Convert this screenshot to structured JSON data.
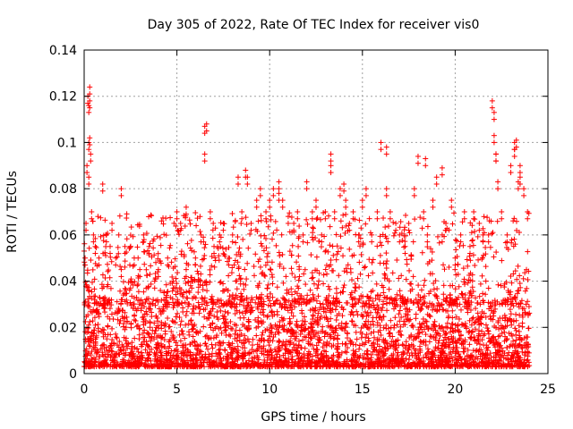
{
  "chart_data": {
    "type": "scatter",
    "title": "Day 305 of 2022, Rate Of TEC Index for receiver vis0",
    "xlabel": "GPS time / hours",
    "ylabel": "ROTI / TECUs",
    "xlim": [
      0,
      25
    ],
    "ylim": [
      0,
      0.14
    ],
    "xticks": [
      0,
      5,
      10,
      15,
      20,
      25
    ],
    "yticks": [
      0,
      0.02,
      0.04,
      0.06,
      0.08,
      0.1,
      0.12,
      0.14
    ],
    "xtick_labels": [
      "0",
      "5",
      "10",
      "15",
      "20",
      "25"
    ],
    "ytick_labels": [
      "0",
      "0.02",
      "0.04",
      "0.06",
      "0.08",
      "0.1",
      "0.12",
      "0.14"
    ],
    "grid": true,
    "marker": "plus",
    "color": "#ff0000",
    "series": [
      {
        "x": [
          0.05,
          0.1,
          0.15,
          0.2,
          0.25,
          0.25,
          0.3,
          0.3,
          0.35,
          0.4,
          0.5,
          0.6,
          0.8,
          1.0,
          1.2,
          1.4,
          1.5,
          1.7,
          2.0,
          2.2,
          2.5,
          2.7,
          3.0,
          3.2,
          3.5,
          3.8,
          4.0,
          4.3,
          4.5,
          4.8,
          5.0,
          5.2,
          5.5,
          5.8,
          6.0,
          6.3,
          6.5,
          6.6,
          6.8,
          7.0,
          7.3,
          7.5,
          7.8,
          8.0,
          8.3,
          8.5,
          8.7,
          9.0,
          9.3,
          9.5,
          9.8,
          10.0,
          10.2,
          10.5,
          10.7,
          11.0,
          11.3,
          11.5,
          11.8,
          12.0,
          12.3,
          12.5,
          12.8,
          13.0,
          13.3,
          13.5,
          13.8,
          14.0,
          14.3,
          14.5,
          14.8,
          15.0,
          15.2,
          15.5,
          15.8,
          16.0,
          16.3,
          16.5,
          16.8,
          17.0,
          17.3,
          17.5,
          17.8,
          18.0,
          18.3,
          18.5,
          18.8,
          19.0,
          19.3,
          19.5,
          19.8,
          20.0,
          20.3,
          20.5,
          20.8,
          21.0,
          21.3,
          21.5,
          21.8,
          22.0,
          22.1,
          22.2,
          22.3,
          22.5,
          22.8,
          23.0,
          23.2,
          23.3,
          23.5,
          23.7,
          23.9,
          0.3,
          0.25,
          2.0,
          5.5,
          6.5,
          8.8,
          10.5,
          13.3,
          14.1,
          16.3,
          18.4,
          19.3,
          22.1,
          22.2,
          23.2,
          23.4,
          23.5
        ],
        "y": [
          0.05,
          0.065,
          0.09,
          0.12,
          0.1,
          0.085,
          0.124,
          0.118,
          0.095,
          0.07,
          0.06,
          0.055,
          0.05,
          0.082,
          0.06,
          0.055,
          0.065,
          0.05,
          0.045,
          0.055,
          0.04,
          0.05,
          0.045,
          0.06,
          0.055,
          0.04,
          0.045,
          0.035,
          0.05,
          0.04,
          0.07,
          0.065,
          0.045,
          0.04,
          0.05,
          0.06,
          0.095,
          0.108,
          0.07,
          0.055,
          0.06,
          0.065,
          0.05,
          0.06,
          0.085,
          0.07,
          0.088,
          0.065,
          0.075,
          0.08,
          0.07,
          0.075,
          0.08,
          0.083,
          0.075,
          0.068,
          0.065,
          0.07,
          0.06,
          0.083,
          0.07,
          0.075,
          0.06,
          0.07,
          0.095,
          0.07,
          0.08,
          0.082,
          0.065,
          0.07,
          0.06,
          0.075,
          0.08,
          0.06,
          0.07,
          0.1,
          0.08,
          0.07,
          0.065,
          0.06,
          0.055,
          0.065,
          0.08,
          0.094,
          0.07,
          0.06,
          0.075,
          0.085,
          0.06,
          0.065,
          0.075,
          0.05,
          0.06,
          0.07,
          0.055,
          0.07,
          0.065,
          0.06,
          0.06,
          0.118,
          0.103,
          0.095,
          0.083,
          0.07,
          0.06,
          0.09,
          0.1,
          0.101,
          0.085,
          0.08,
          0.07,
          0.102,
          0.116,
          0.08,
          0.072,
          0.107,
          0.085,
          0.078,
          0.09,
          0.075,
          0.098,
          0.093,
          0.089,
          0.113,
          0.095,
          0.097,
          0.083,
          0.09
        ]
      }
    ],
    "dense_band_ymax": 0.03
  }
}
